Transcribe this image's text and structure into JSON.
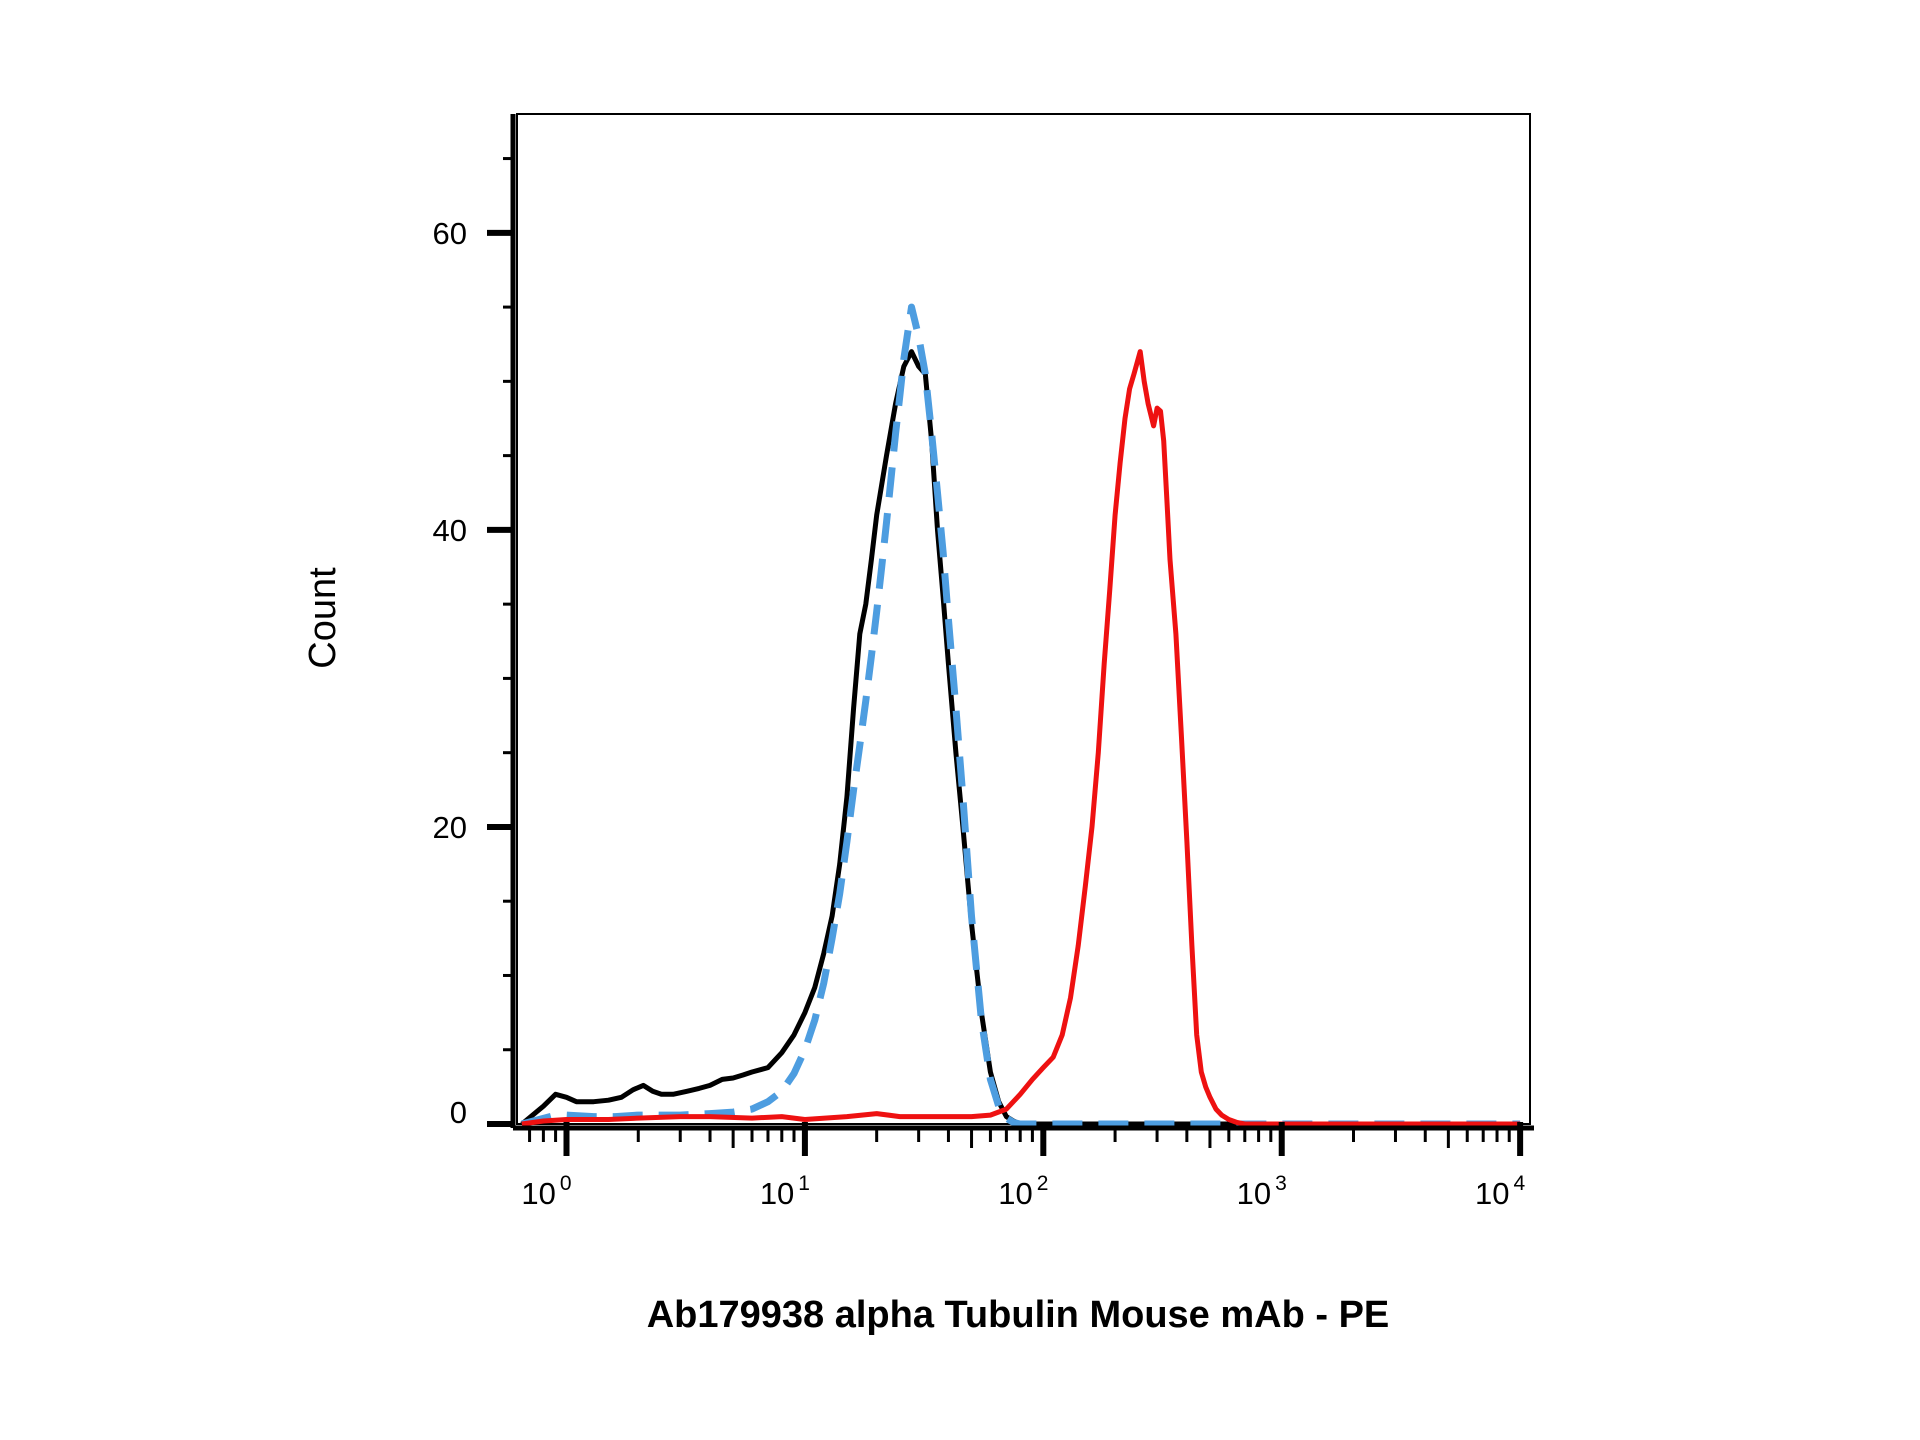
{
  "chart_data": {
    "type": "line",
    "title": "",
    "xlabel": "Ab179938 alpha Tubulin Mouse mAb - PE",
    "ylabel": "Count",
    "xscale": "log",
    "xlim": [
      0.62,
      11000
    ],
    "ylim": [
      0,
      68
    ],
    "y_ticks": [
      0,
      20,
      40,
      60
    ],
    "x_ticks": [
      {
        "value": 1,
        "base": "10",
        "exp": "0"
      },
      {
        "value": 10,
        "base": "10",
        "exp": "1"
      },
      {
        "value": 100,
        "base": "10",
        "exp": "2"
      },
      {
        "value": 1000,
        "base": "10",
        "exp": "3"
      },
      {
        "value": 10000,
        "base": "10",
        "exp": "4"
      }
    ],
    "grid": false,
    "series": [
      {
        "color": "#000000",
        "style": "solid",
        "x": [
          0.65,
          0.8,
          0.9,
          1.0,
          1.1,
          1.3,
          1.5,
          1.7,
          1.9,
          2.1,
          2.3,
          2.5,
          2.8,
          3.2,
          3.6,
          4.0,
          4.5,
          5.0,
          5.5,
          6.0,
          7.0,
          8.0,
          9.0,
          10.0,
          11.0,
          12.0,
          13.0,
          14.0,
          15.0,
          16.0,
          17.0,
          18.0,
          19.0,
          20.0,
          22.0,
          24.0,
          26.0,
          28.0,
          30.0,
          32.0,
          34.0,
          36.0,
          38.0,
          40.0,
          43.0,
          46.0,
          50.0,
          55.0,
          60.0,
          65.0,
          70.0,
          75.0,
          80.0,
          85.0,
          90.0,
          100.0,
          110.0,
          150.0,
          300.0,
          1000.0,
          10000.0
        ],
        "y": [
          0,
          1.2,
          2.0,
          1.8,
          1.5,
          1.5,
          1.6,
          1.8,
          2.3,
          2.6,
          2.2,
          2.0,
          2.0,
          2.2,
          2.4,
          2.6,
          3.0,
          3.1,
          3.3,
          3.5,
          3.8,
          4.8,
          6.0,
          7.5,
          9.2,
          11.5,
          14.0,
          17.5,
          22.0,
          28.0,
          33.0,
          35.0,
          38.0,
          41.0,
          45.0,
          48.5,
          51.0,
          52.0,
          51.0,
          50.5,
          46.0,
          40.0,
          35.5,
          31.0,
          25.0,
          20.0,
          13.5,
          7.5,
          3.5,
          1.5,
          0.5,
          0.2,
          0,
          0,
          0,
          0,
          0,
          0,
          0,
          0,
          0
        ]
      },
      {
        "color": "#4d9de0",
        "style": "dashed",
        "x": [
          0.65,
          0.9,
          1.0,
          1.3,
          1.6,
          2.0,
          2.5,
          3.0,
          4.0,
          5.0,
          6.0,
          7.0,
          8.0,
          9.0,
          10.0,
          11.0,
          12.0,
          13.0,
          14.0,
          15.0,
          16.0,
          17.0,
          18.0,
          19.0,
          20.0,
          21.0,
          22.0,
          23.0,
          24.0,
          25.0,
          26.0,
          28.0,
          30.0,
          32.0,
          34.0,
          36.0,
          38.0,
          40.0,
          43.0,
          46.0,
          50.0,
          55.0,
          60.0,
          65.0,
          70.0,
          75.0,
          80.0,
          90.0,
          100.0,
          300.0,
          1000.0,
          10000.0
        ],
        "y": [
          0,
          0.6,
          0.6,
          0.5,
          0.5,
          0.6,
          0.6,
          0.6,
          0.7,
          0.8,
          1.0,
          1.5,
          2.2,
          3.4,
          5.0,
          7.0,
          9.5,
          12.5,
          15.5,
          19.0,
          22.5,
          25.5,
          28.5,
          31.5,
          34.5,
          37.5,
          40.5,
          43.5,
          46.5,
          49.0,
          51.5,
          55.0,
          53.0,
          50.5,
          46.5,
          42.5,
          38.5,
          34.0,
          28.0,
          22.0,
          14.0,
          7.0,
          3.0,
          1.2,
          0.4,
          0.1,
          0,
          0,
          0,
          0,
          0,
          0
        ]
      },
      {
        "color": "#ee1111",
        "style": "solid",
        "x": [
          0.65,
          0.8,
          1.0,
          1.5,
          2.0,
          3.0,
          4.0,
          6.0,
          8.0,
          10.0,
          15.0,
          20.0,
          25.0,
          30.0,
          40.0,
          50.0,
          60.0,
          70.0,
          80.0,
          90.0,
          100.0,
          110.0,
          120.0,
          130.0,
          140.0,
          150.0,
          160.0,
          170.0,
          180.0,
          190.0,
          200.0,
          210.0,
          220.0,
          230.0,
          240.0,
          255.0,
          265.0,
          275.0,
          290.0,
          300.0,
          310.0,
          320.0,
          330.0,
          340.0,
          360.0,
          380.0,
          400.0,
          420.0,
          440.0,
          460.0,
          480.0,
          500.0,
          530.0,
          560.0,
          600.0,
          650.0,
          700.0,
          750.0,
          800.0,
          900.0,
          1000.0,
          1200.0,
          1500.0,
          2000.0,
          3000.0,
          5000.0,
          10000.0
        ],
        "y": [
          0,
          0.2,
          0.3,
          0.3,
          0.4,
          0.5,
          0.5,
          0.4,
          0.5,
          0.3,
          0.5,
          0.7,
          0.5,
          0.5,
          0.5,
          0.5,
          0.6,
          1.0,
          2.0,
          3.0,
          3.8,
          4.5,
          6.0,
          8.5,
          12.0,
          16.0,
          20.0,
          25.0,
          31.0,
          36.0,
          41.0,
          44.5,
          47.5,
          49.5,
          50.5,
          52.0,
          50.0,
          48.5,
          47.0,
          48.2,
          48.0,
          46.0,
          42.0,
          38.0,
          33.0,
          26.0,
          19.0,
          12.0,
          6.0,
          3.5,
          2.5,
          1.8,
          1.0,
          0.6,
          0.3,
          0.1,
          0,
          0,
          0,
          0,
          0,
          0,
          0,
          0,
          0,
          0,
          0
        ]
      }
    ]
  }
}
